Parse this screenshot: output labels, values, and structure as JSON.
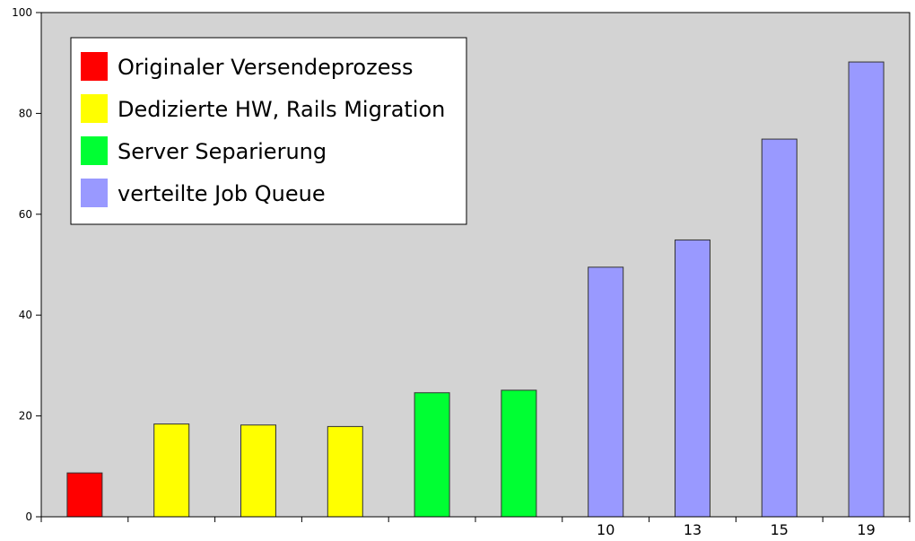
{
  "chart_data": {
    "type": "bar",
    "categories": [
      "",
      "",
      "",
      "",
      "",
      "",
      "10",
      "13",
      "15",
      "19"
    ],
    "values": [
      8.7,
      18.4,
      18.2,
      17.9,
      24.6,
      25.1,
      49.5,
      54.9,
      74.9,
      90.2
    ],
    "bar_series_index": [
      0,
      1,
      1,
      1,
      2,
      2,
      3,
      3,
      3,
      3
    ],
    "series": [
      {
        "name": "Originaler Versendeprozess",
        "color": "#ff0000"
      },
      {
        "name": "Dedizierte HW, Rails Migration",
        "color": "#ffff00"
      },
      {
        "name": "Server Separierung",
        "color": "#00ff33"
      },
      {
        "name": "verteilte Job Queue",
        "color": "#9999ff"
      }
    ],
    "title": "",
    "xlabel": "",
    "ylabel": "",
    "ylim": [
      0,
      100
    ],
    "yticks": [
      0,
      20,
      40,
      60,
      80,
      100
    ],
    "grid": false,
    "legend_position": "top-left",
    "plot_background": "#d3d3d3"
  }
}
